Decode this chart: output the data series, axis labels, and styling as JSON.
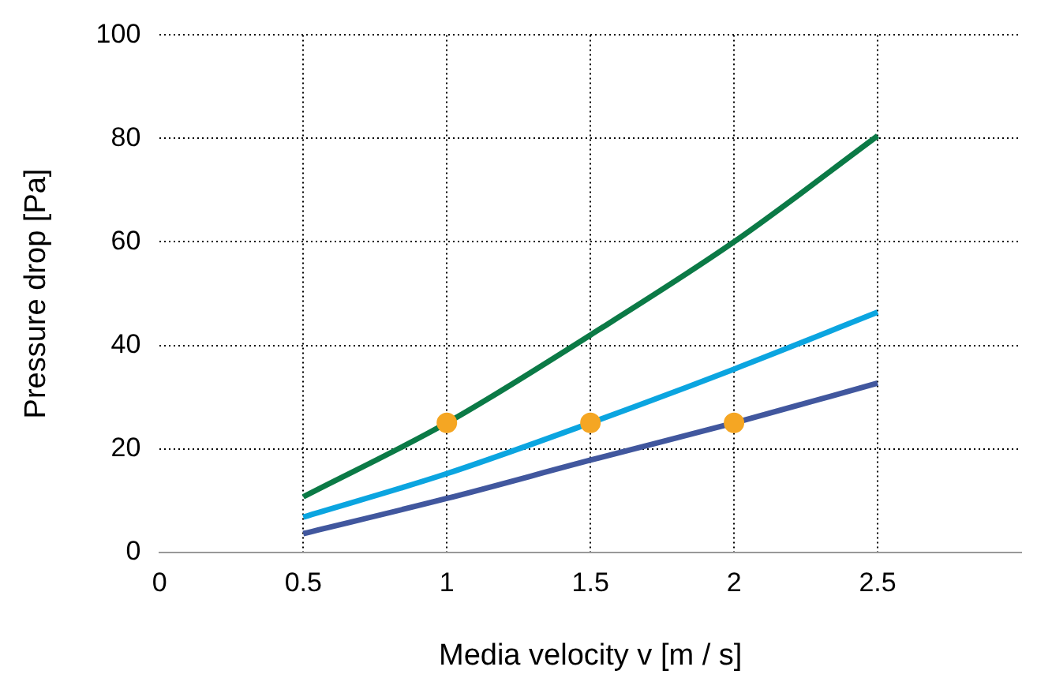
{
  "chart_data": {
    "type": "line",
    "xlabel": "Media velocity v [m / s]",
    "ylabel": "Pressure drop [Pa]",
    "xlim": [
      0,
      3
    ],
    "xticks": [
      0,
      0.5,
      1,
      1.5,
      2,
      2.5
    ],
    "ylim": [
      0,
      100
    ],
    "yticks": [
      0,
      20,
      40,
      60,
      80,
      100
    ],
    "x": [
      0.5,
      1,
      1.5,
      2,
      2.5
    ],
    "series": [
      {
        "color": "#0b7a46",
        "values": [
          10.7,
          25,
          42,
          60,
          80.5
        ]
      },
      {
        "color": "#0ba5e0",
        "values": [
          6.8,
          15.2,
          25,
          35.4,
          46.4
        ]
      },
      {
        "color": "#41579e",
        "values": [
          3.6,
          10.4,
          17.8,
          25,
          32.7
        ]
      },
      {
        "type": "scatter",
        "color": "#f5a623",
        "x": [
          1,
          1.5,
          2
        ],
        "values": [
          25,
          25,
          25
        ]
      }
    ],
    "grid": true,
    "legend": false,
    "line_style": "solid"
  }
}
